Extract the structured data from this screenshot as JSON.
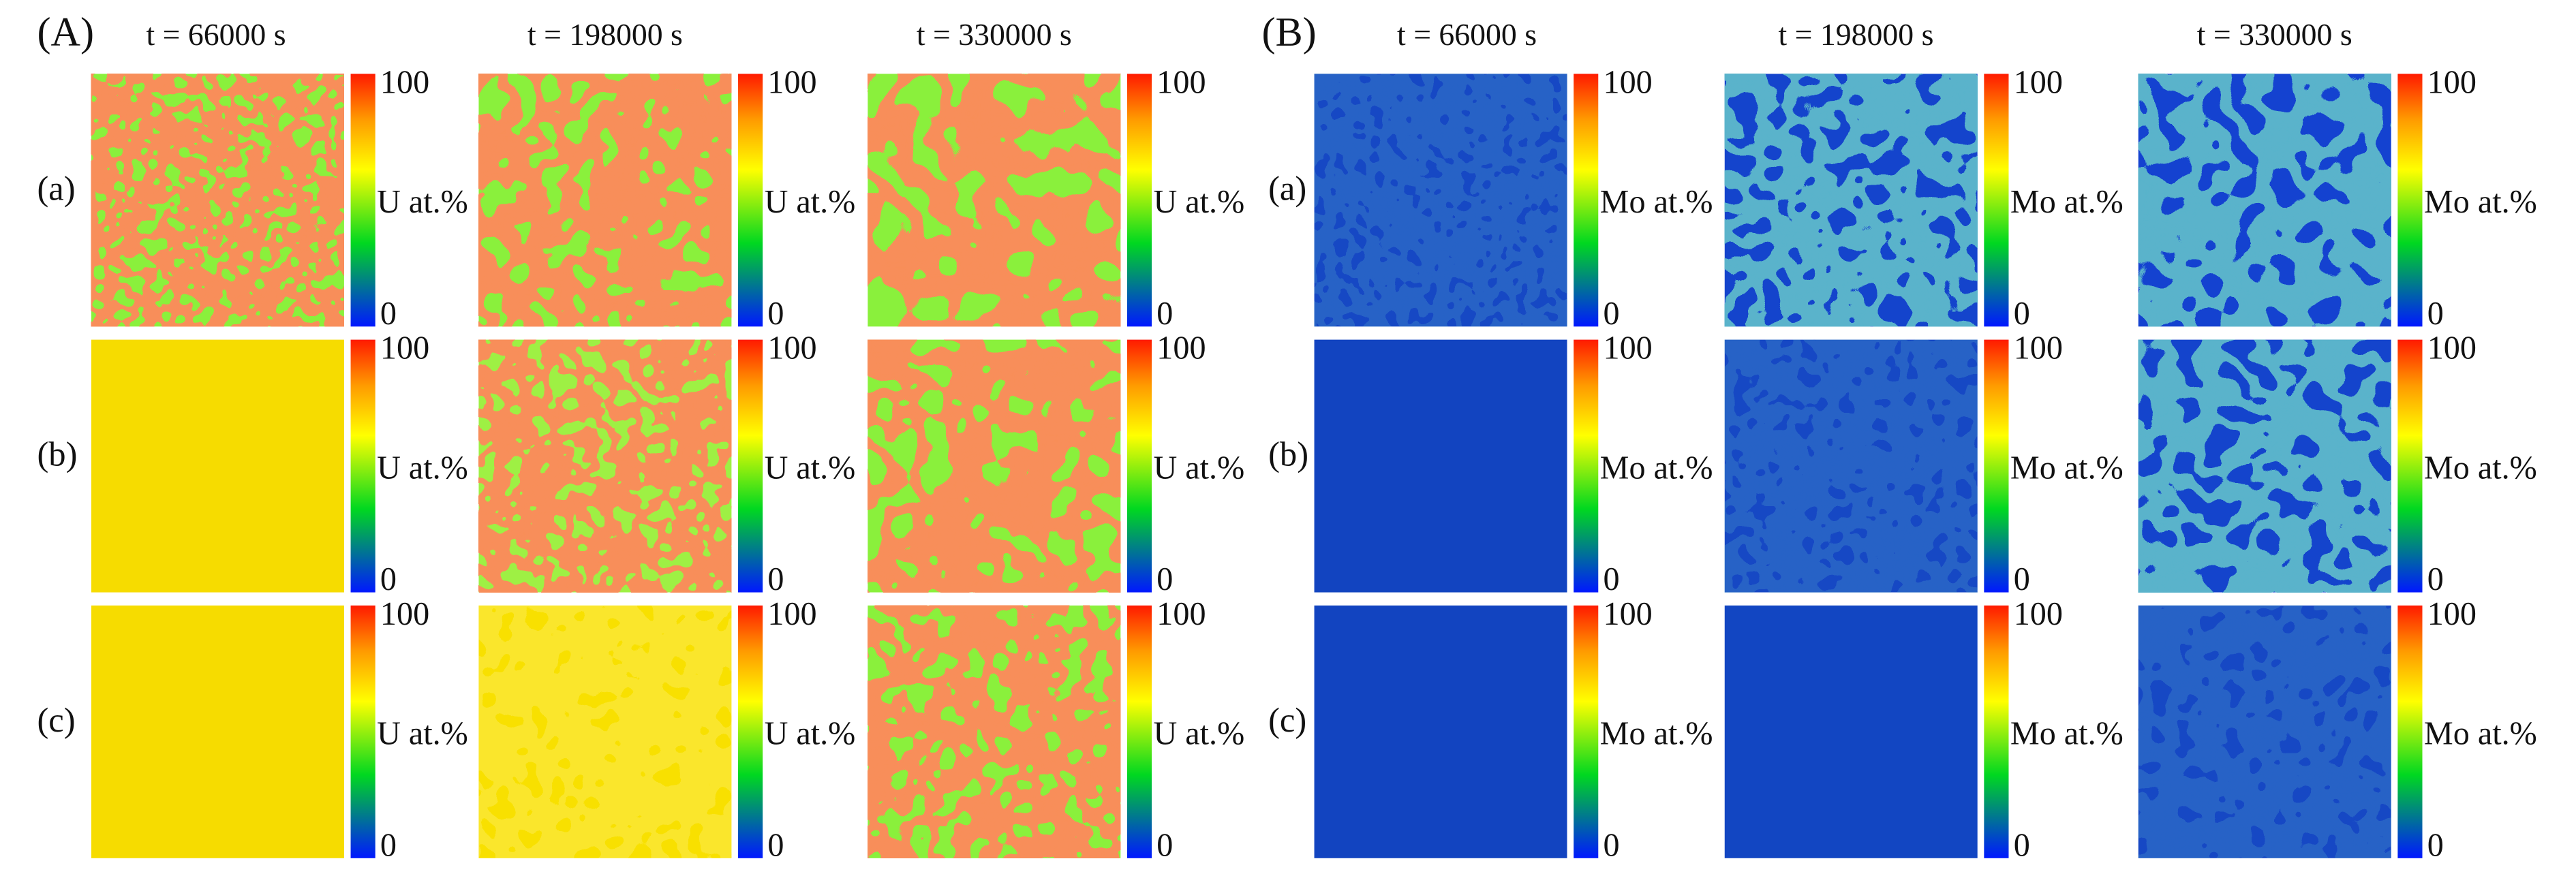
{
  "panels": [
    {
      "label": "(A)",
      "times": [
        "t = 66000 s",
        "t = 198000 s",
        "t = 330000 s"
      ],
      "rows": [
        "(a)",
        "(b)",
        "(c)"
      ],
      "colorbar": {
        "label": "U at.%",
        "max": 100,
        "min": 0
      }
    },
    {
      "label": "(B)",
      "times": [
        "t = 66000 s",
        "t = 198000 s",
        "t = 330000 s"
      ],
      "rows": [
        "(a)",
        "(b)",
        "(c)"
      ],
      "colorbar": {
        "label": "Mo at.%",
        "max": 100,
        "min": 0
      }
    }
  ]
}
